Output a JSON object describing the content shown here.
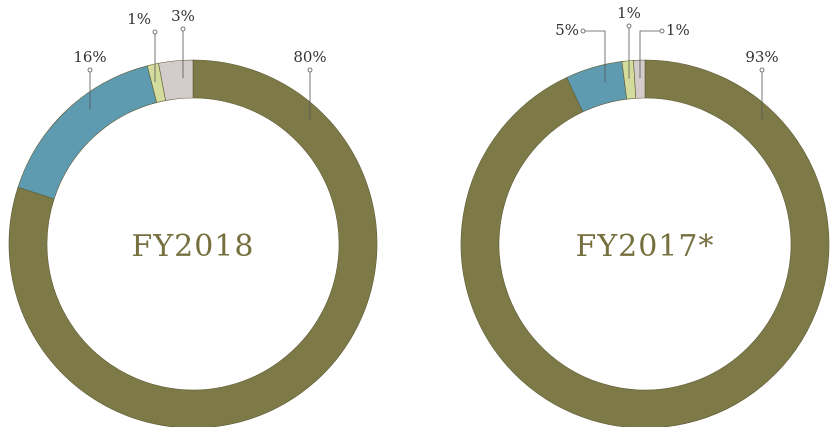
{
  "chart_data": [
    {
      "type": "pie",
      "title": "FY2018",
      "categories": [
        null,
        null,
        null,
        null
      ],
      "values": [
        80,
        16,
        1,
        3
      ],
      "value_labels": [
        "80%",
        "16%",
        "1%",
        "3%"
      ],
      "colors": [
        "#7d7a48",
        "#5f9bb0",
        "#d3dc9c",
        "#d3cccb"
      ]
    },
    {
      "type": "pie",
      "title": "FY2017*",
      "categories": [
        null,
        null,
        null,
        null
      ],
      "values": [
        93,
        5,
        1,
        1
      ],
      "value_labels": [
        "93%",
        "5%",
        "1%",
        "1%"
      ],
      "colors": [
        "#7d7a48",
        "#5f9bb0",
        "#d3dc9c",
        "#d3cccb"
      ]
    }
  ]
}
